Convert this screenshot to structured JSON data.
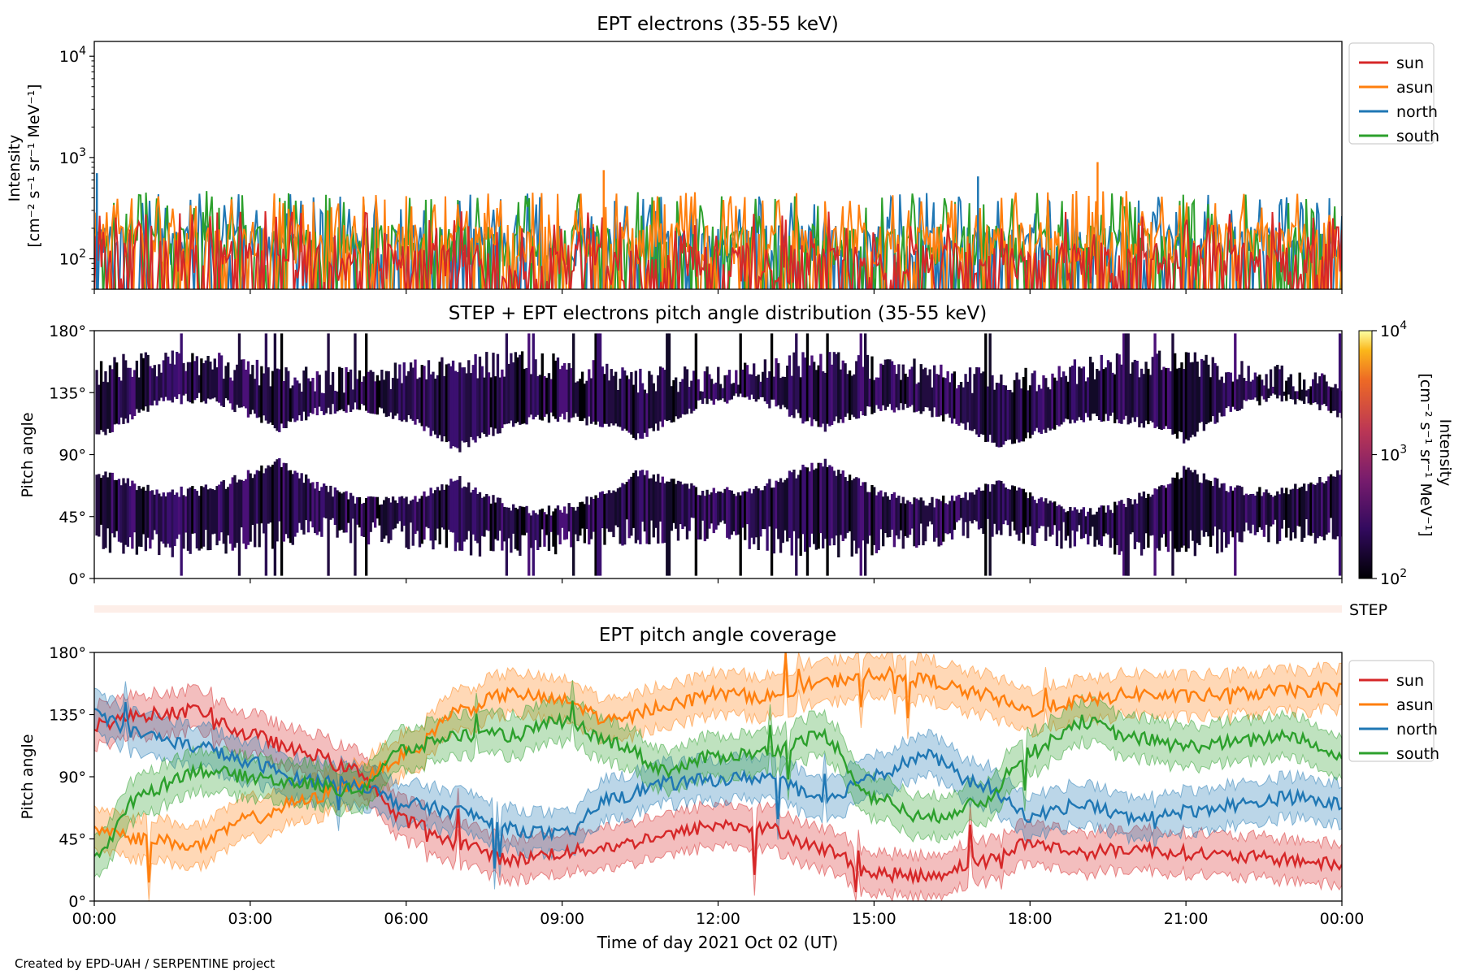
{
  "footer_note": "Created by EPD-UAH / SERPENTINE project",
  "x_tick_labels": [
    "00:00",
    "03:00",
    "06:00",
    "09:00",
    "12:00",
    "15:00",
    "18:00",
    "21:00",
    "00:00"
  ],
  "x_label": "Time of day 2021 Oct 02 (UT)",
  "colors": {
    "sun": "#d62728",
    "asun": "#ff7f0e",
    "north": "#1f77b4",
    "south": "#2ca02c"
  },
  "chart_data": [
    {
      "type": "line",
      "title": "EPT electrons (35-55 keV)",
      "ylabel_line1": "Intensity",
      "ylabel_line2": "[cm⁻² s⁻¹ sr⁻¹ MeV⁻¹]",
      "y_scale": "log",
      "ylim": [
        50,
        14000
      ],
      "y_ticks": [
        100,
        1000,
        10000
      ],
      "y_tick_base": "10",
      "y_tick_exps": [
        "2",
        "3",
        "4"
      ],
      "x_range_hours": [
        0,
        24
      ],
      "legend": {
        "position": "right",
        "entries": [
          "sun",
          "asun",
          "north",
          "south"
        ]
      },
      "series_envelope": [
        {
          "name": "north",
          "base": [
            150,
            160,
            140,
            150,
            145,
            150,
            150,
            150,
            155,
            150,
            150,
            150,
            150
          ],
          "peak": [
            300,
            330,
            310,
            300,
            320,
            310,
            300,
            310,
            320,
            310,
            300,
            310,
            300
          ]
        },
        {
          "name": "south",
          "base": [
            150,
            160,
            145,
            150,
            150,
            150,
            150,
            150,
            150,
            150,
            150,
            150,
            150
          ],
          "peak": [
            310,
            340,
            320,
            320,
            330,
            330,
            320,
            330,
            330,
            320,
            330,
            330,
            310
          ]
        },
        {
          "name": "asun",
          "base": [
            160,
            170,
            150,
            160,
            155,
            160,
            160,
            160,
            160,
            160,
            160,
            160,
            160
          ],
          "peak": [
            320,
            350,
            330,
            330,
            340,
            340,
            330,
            340,
            340,
            330,
            340,
            340,
            320
          ]
        },
        {
          "name": "sun",
          "base": [
            100,
            110,
            95,
            100,
            100,
            100,
            100,
            100,
            100,
            100,
            100,
            100,
            100
          ],
          "peak": [
            200,
            220,
            210,
            210,
            215,
            210,
            205,
            210,
            215,
            210,
            210,
            210,
            200
          ]
        }
      ],
      "notable_peaks": [
        {
          "name": "north",
          "x": 0.05,
          "y": 700
        },
        {
          "name": "asun",
          "x": 9.8,
          "y": 750
        },
        {
          "name": "north",
          "x": 17.0,
          "y": 650
        },
        {
          "name": "asun",
          "x": 19.3,
          "y": 900
        }
      ]
    },
    {
      "type": "heatmap",
      "title": "STEP + EPT electrons pitch angle distribution (35-55 keV)",
      "ylabel": "Pitch angle",
      "ylim": [
        0,
        180
      ],
      "y_tick_labels": [
        "0°",
        "45°",
        "90°",
        "135°",
        "180°"
      ],
      "x_range_hours": [
        0,
        24
      ],
      "colorbar": {
        "label_line1": "Intensity",
        "label_line2": "[cm⁻² s⁻¹ sr⁻¹ MeV⁻¹]",
        "scale": "log",
        "range": [
          100,
          10000
        ],
        "tick_base": "10",
        "tick_exps": [
          "2",
          "3",
          "4"
        ],
        "colormap": "inferno"
      },
      "step_label": "STEP"
    },
    {
      "type": "line",
      "title": "EPT pitch angle coverage",
      "ylabel": "Pitch angle",
      "ylim": [
        0,
        180
      ],
      "y_tick_labels": [
        "0°",
        "45°",
        "90°",
        "135°",
        "180°"
      ],
      "x_range_hours": [
        0,
        24
      ],
      "legend": {
        "position": "right",
        "entries": [
          "sun",
          "asun",
          "north",
          "south"
        ]
      },
      "band_halfwidth_deg": 15,
      "x": [
        0,
        1,
        2,
        3,
        4,
        5,
        6,
        7,
        8,
        9,
        10,
        11,
        12,
        13,
        14,
        15,
        16,
        17,
        18,
        19,
        20,
        21,
        22,
        23,
        24
      ],
      "series": [
        {
          "name": "sun",
          "values": [
            128,
            135,
            138,
            120,
            108,
            95,
            58,
            42,
            30,
            35,
            40,
            48,
            55,
            52,
            38,
            20,
            18,
            28,
            42,
            35,
            38,
            35,
            32,
            30,
            26
          ]
        },
        {
          "name": "asun",
          "values": [
            52,
            45,
            40,
            60,
            72,
            85,
            105,
            138,
            150,
            145,
            130,
            142,
            150,
            148,
            158,
            165,
            160,
            150,
            138,
            145,
            150,
            148,
            150,
            152,
            154
          ]
        },
        {
          "name": "north",
          "values": [
            135,
            120,
            112,
            100,
            88,
            85,
            70,
            65,
            52,
            48,
            75,
            85,
            88,
            90,
            72,
            92,
            105,
            85,
            62,
            70,
            60,
            65,
            70,
            75,
            70
          ]
        },
        {
          "name": "south",
          "values": [
            35,
            80,
            95,
            90,
            85,
            80,
            110,
            120,
            120,
            130,
            115,
            95,
            105,
            108,
            120,
            75,
            60,
            70,
            108,
            130,
            118,
            112,
            115,
            120,
            105
          ]
        }
      ]
    }
  ]
}
